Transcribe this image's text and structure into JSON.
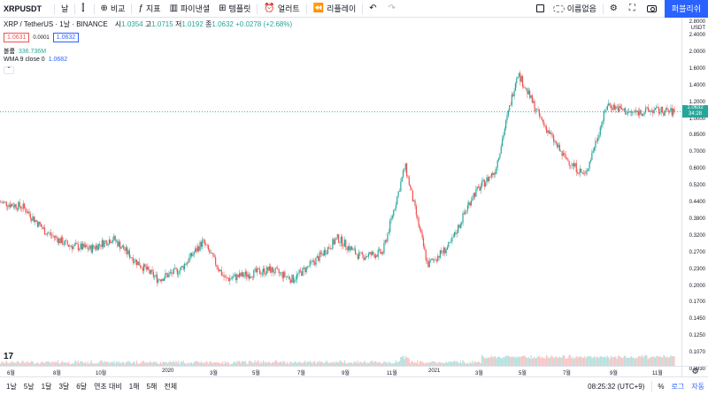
{
  "toolbar": {
    "symbol": "XRPUSDT",
    "interval": "날",
    "compare": "비교",
    "indicators": "지표",
    "financials": "파이낸셜",
    "templates": "템플릿",
    "alert": "얼러트",
    "replay": "리플레이",
    "unnamed": "이름없음",
    "publish": "퍼블리쉬"
  },
  "legend": {
    "pair": "XRP / TetherUS · 1날 · BINANCE",
    "open_label": "시",
    "open": "1.0354",
    "high_label": "고",
    "high": "1.0715",
    "low_label": "저",
    "low": "1.0192",
    "close_label": "종",
    "close": "1.0632",
    "change": "+0.0278 (+2.68%)",
    "sell_price": "1.0631",
    "spread": "0.0001",
    "buy_price": "1.0632",
    "volume_label": "볼륨",
    "volume": "336.736M",
    "wma_label": "WMA 9 close 0",
    "wma": "1.0682"
  },
  "price_axis": {
    "currency": "2.8000\nUSDT",
    "ticks": [
      "2.4000",
      "2.0000",
      "1.6000",
      "1.4000",
      "1.2000",
      "1.0000",
      "0.8500",
      "0.7000",
      "0.6000",
      "0.5200",
      "0.4400",
      "0.3800",
      "0.3200",
      "0.2700",
      "0.2300",
      "0.2000",
      "0.1700",
      "0.1450",
      "0.1250",
      "0.1070",
      "0.0930",
      "0.0810"
    ],
    "current_price": "1.0632",
    "countdown": "34:28"
  },
  "time_axis": {
    "ticks": [
      "6월",
      "8월",
      "10월",
      "2020",
      "3월",
      "5월",
      "7월",
      "9월",
      "11월",
      "2021",
      "3월",
      "5월",
      "7월",
      "9월",
      "11월"
    ]
  },
  "bottom": {
    "ranges": [
      "1날",
      "5날",
      "1달",
      "3달",
      "6달",
      "연초 대비",
      "1해",
      "5해",
      "전체"
    ],
    "clock": "08:25:32 (UTC+9)",
    "percent": "%",
    "log": "로그",
    "auto": "자동"
  },
  "chart_data": {
    "type": "candlestick",
    "x": [
      "2019-05",
      "2019-06",
      "2019-07",
      "2019-08",
      "2019-09",
      "2019-10",
      "2019-11",
      "2019-12",
      "2020-01",
      "2020-02",
      "2020-03",
      "2020-04",
      "2020-05",
      "2020-06",
      "2020-07",
      "2020-08",
      "2020-09",
      "2020-10",
      "2020-11",
      "2020-12",
      "2021-01",
      "2021-02",
      "2021-03",
      "2021-04",
      "2021-05",
      "2021-06",
      "2021-07",
      "2021-08",
      "2021-09",
      "2021-10",
      "2021-11"
    ],
    "close": [
      0.42,
      0.4,
      0.31,
      0.27,
      0.26,
      0.29,
      0.23,
      0.19,
      0.21,
      0.28,
      0.19,
      0.2,
      0.21,
      0.19,
      0.23,
      0.29,
      0.24,
      0.25,
      0.61,
      0.22,
      0.27,
      0.45,
      0.58,
      1.6,
      1.0,
      0.68,
      0.55,
      1.15,
      1.05,
      1.08,
      1.06
    ],
    "ylim": [
      0.078,
      2.8
    ],
    "scale": "log"
  }
}
